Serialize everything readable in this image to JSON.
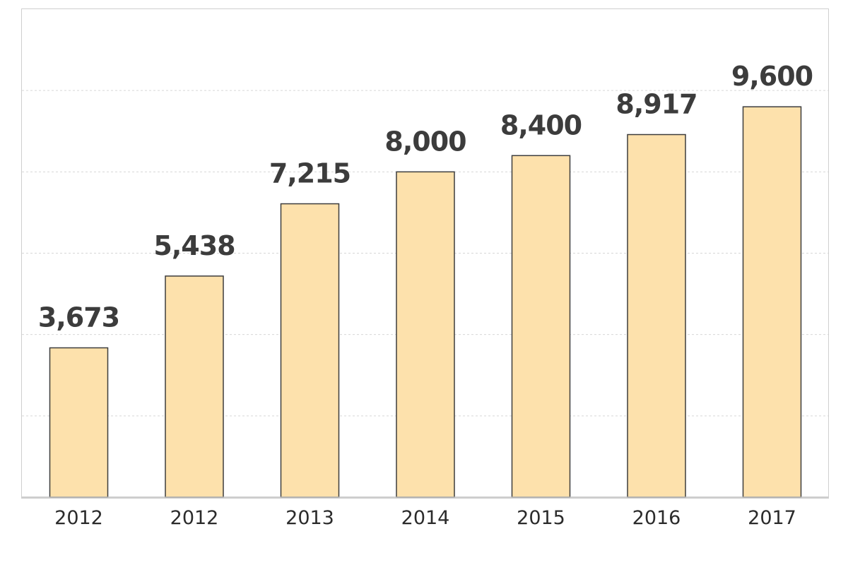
{
  "chart_data": {
    "type": "bar",
    "categories": [
      "2012",
      "2012",
      "2013",
      "2014",
      "2015",
      "2016",
      "2017"
    ],
    "values": [
      3673,
      5438,
      7215,
      8000,
      8400,
      8917,
      9600
    ],
    "value_labels": [
      "3,673",
      "5,438",
      "7,215",
      "8,000",
      "8,400",
      "8,917",
      "9,600"
    ],
    "ylim": [
      0,
      12000
    ],
    "grid": true,
    "bar_color": "#fde1ac",
    "bar_edge_color": "#3d3d3d",
    "label_color": "#3c3c3c"
  }
}
